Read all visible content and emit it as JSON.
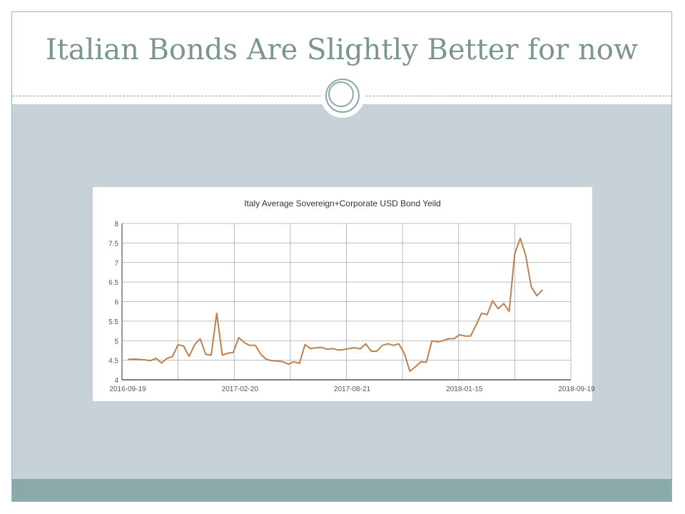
{
  "slide": {
    "title": "Italian Bonds Are Slightly Better for now"
  },
  "colors": {
    "title": "#7a9693",
    "content_band": "#c6d2d7",
    "footer_band": "#8aaaaa",
    "series_line": "#c0804d",
    "grid": "#aaaaaa"
  },
  "chart_data": {
    "type": "line",
    "title": "Italy Average Sovereign+Corporate  USD Bond Yeild",
    "xlabel": "",
    "ylabel": "",
    "ylim": [
      4,
      8
    ],
    "yticks": [
      "4",
      "4.5",
      "5",
      "5.5",
      "6",
      "6.5",
      "7",
      "7.5",
      "8"
    ],
    "xticks": [
      "2016-09-19",
      "2017-02-20",
      "2017-08-21",
      "2018-01-15",
      "2018-09-19"
    ],
    "grid": true,
    "legend": "none",
    "series": [
      {
        "values": [
          4.52,
          4.53,
          4.52,
          4.51,
          4.49,
          4.55,
          4.43,
          4.55,
          4.6,
          4.9,
          4.86,
          4.6,
          4.9,
          5.05,
          4.65,
          4.63,
          5.7,
          4.63,
          4.68,
          4.7,
          5.08,
          4.95,
          4.88,
          4.88,
          4.65,
          4.52,
          4.49,
          4.48,
          4.46,
          4.4,
          4.46,
          4.42,
          4.9,
          4.8,
          4.82,
          4.83,
          4.78,
          4.8,
          4.76,
          4.77,
          4.8,
          4.82,
          4.79,
          4.92,
          4.73,
          4.73,
          4.88,
          4.92,
          4.88,
          4.92,
          4.67,
          4.22,
          4.33,
          4.46,
          4.45,
          5.0,
          4.97,
          5.0,
          5.05,
          5.05,
          5.15,
          5.12,
          5.12,
          5.4,
          5.7,
          5.67,
          6.02,
          5.82,
          5.95,
          5.75,
          7.22,
          7.62,
          7.18,
          6.38,
          6.15,
          6.29
        ]
      }
    ]
  }
}
